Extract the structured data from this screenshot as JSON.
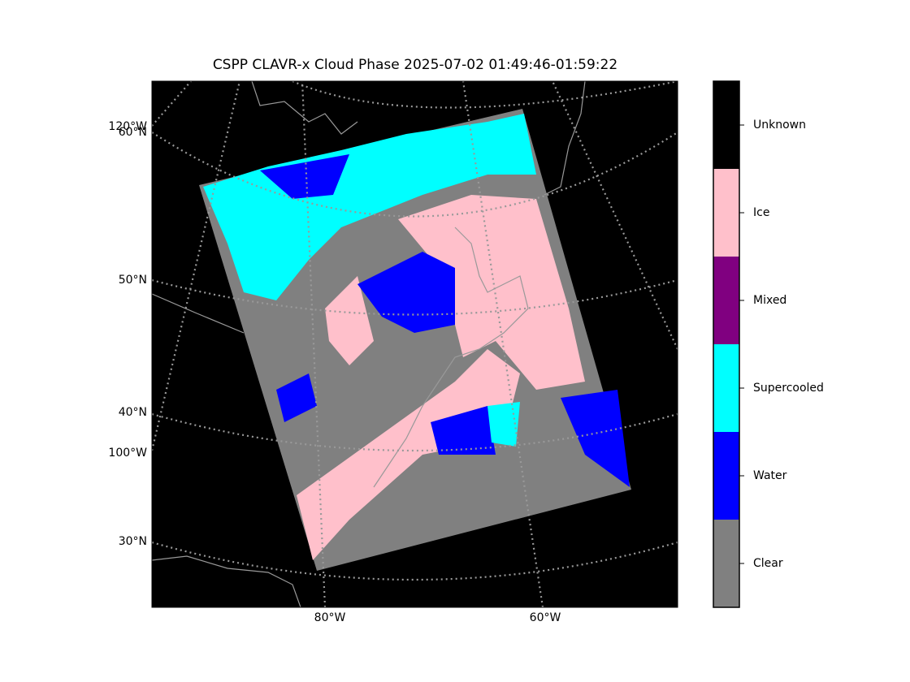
{
  "title": "CSPP CLAVR-x Cloud Phase 2025-07-02 01:49:46-01:59:22",
  "map": {
    "lat_labels": [
      "60°N",
      "50°N",
      "40°N",
      "30°N"
    ],
    "lon_labels_left": [
      "120°W",
      "100°W"
    ],
    "lon_labels_bottom": [
      "80°W",
      "60°W"
    ]
  },
  "colorbar": {
    "categories": [
      {
        "label": "Clear",
        "color": "#808080"
      },
      {
        "label": "Water",
        "color": "#0000ff"
      },
      {
        "label": "Supercooled",
        "color": "#00ffff"
      },
      {
        "label": "Mixed",
        "color": "#800080"
      },
      {
        "label": "Ice",
        "color": "#ffc0cb"
      },
      {
        "label": "Unknown",
        "color": "#000000"
      }
    ]
  }
}
